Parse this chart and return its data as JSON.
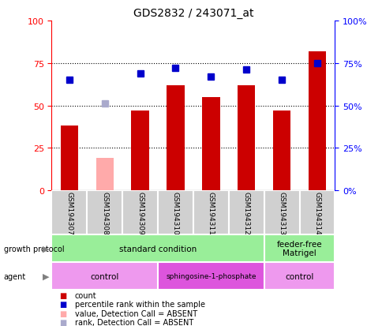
{
  "title": "GDS2832 / 243071_at",
  "samples": [
    "GSM194307",
    "GSM194308",
    "GSM194309",
    "GSM194310",
    "GSM194311",
    "GSM194312",
    "GSM194313",
    "GSM194314"
  ],
  "count_values": [
    38,
    null,
    47,
    62,
    55,
    62,
    47,
    82
  ],
  "count_absent_values": [
    null,
    19,
    null,
    null,
    null,
    null,
    null,
    null
  ],
  "rank_values": [
    65,
    null,
    69,
    72,
    67,
    71,
    65,
    75
  ],
  "rank_absent_values": [
    null,
    51,
    null,
    null,
    null,
    null,
    null,
    null
  ],
  "ylim": [
    0,
    100
  ],
  "yticks": [
    0,
    25,
    50,
    75,
    100
  ],
  "bar_color": "#cc0000",
  "bar_absent_color": "#ffaaaa",
  "rank_color": "#0000cc",
  "rank_absent_color": "#aaaacc",
  "gp_groups": [
    {
      "label": "standard condition",
      "start": 0,
      "end": 6,
      "color": "#99ee99"
    },
    {
      "label": "feeder-free\nMatrigel",
      "start": 6,
      "end": 8,
      "color": "#99ee99"
    }
  ],
  "agent_groups": [
    {
      "label": "control",
      "start": 0,
      "end": 3,
      "color": "#ee99ee"
    },
    {
      "label": "sphingosine-1-phosphate",
      "start": 3,
      "end": 6,
      "color": "#dd55dd"
    },
    {
      "label": "control",
      "start": 6,
      "end": 8,
      "color": "#ee99ee"
    }
  ],
  "legend_items": [
    {
      "label": "count",
      "color": "#cc0000"
    },
    {
      "label": "percentile rank within the sample",
      "color": "#0000cc"
    },
    {
      "label": "value, Detection Call = ABSENT",
      "color": "#ffaaaa"
    },
    {
      "label": "rank, Detection Call = ABSENT",
      "color": "#aaaacc"
    }
  ],
  "bar_width": 0.5,
  "marker_size": 6
}
